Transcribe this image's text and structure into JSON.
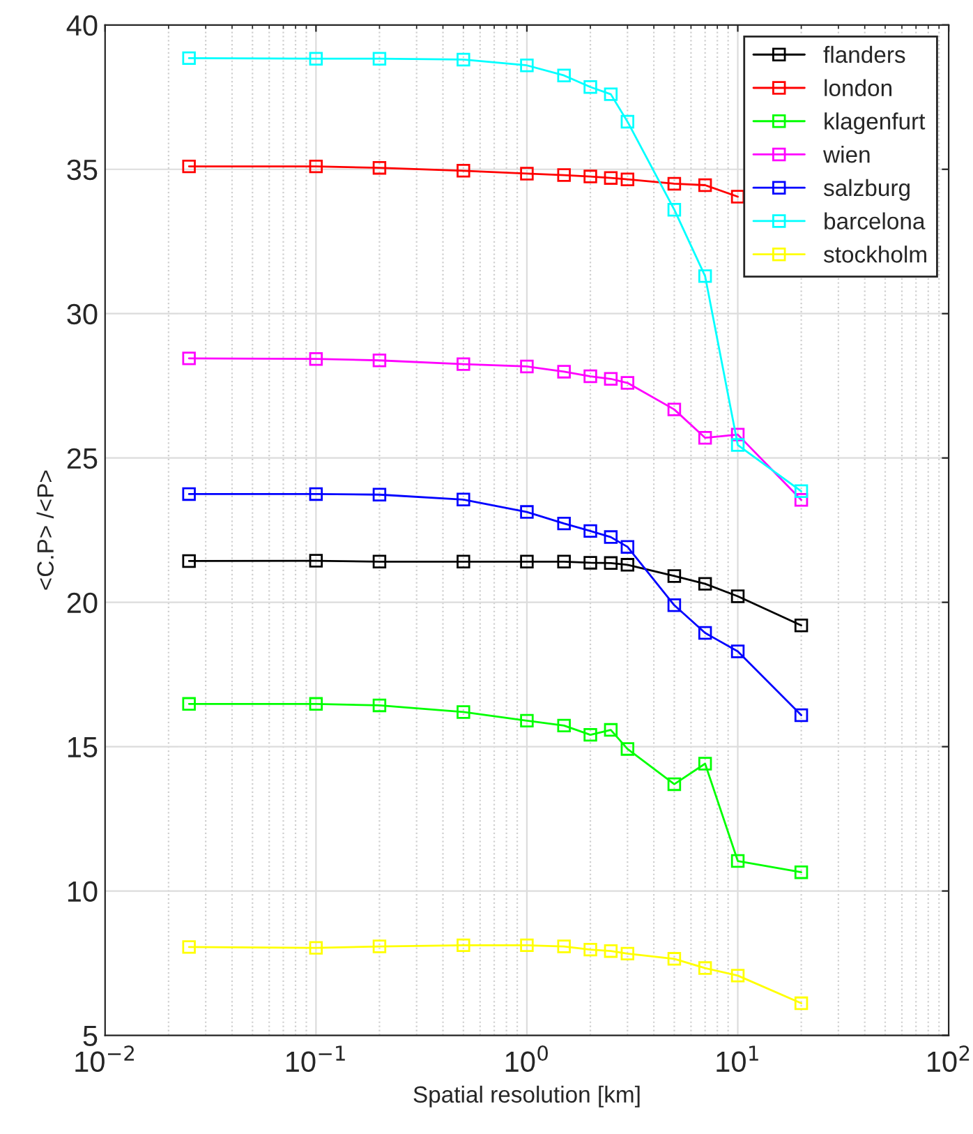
{
  "chart_data": {
    "type": "line",
    "xlabel": "Spatial resolution [km]",
    "ylabel": "<C.P> /<P>",
    "x": [
      0.025,
      0.1,
      0.2,
      0.5,
      1,
      1.5,
      2,
      2.5,
      3,
      5,
      7,
      10,
      20
    ],
    "log": "x",
    "xlim": [
      0.01,
      100
    ],
    "xticks": [
      {
        "value": 0.01,
        "label": "10$^{−2}$"
      },
      {
        "value": 0.1,
        "label": "10$^{−1}$"
      },
      {
        "value": 1,
        "label": "10$^{0}$"
      },
      {
        "value": 10,
        "label": "10$^{1}$"
      },
      {
        "value": 100,
        "label": "10$^{2}$"
      }
    ],
    "ylim": [
      5,
      40
    ],
    "yticks": [
      5,
      10,
      15,
      20,
      25,
      30,
      35,
      40
    ],
    "grid": true,
    "legend": "top right",
    "marker": "square",
    "line_style": "solid",
    "series": [
      {
        "name": "flanders",
        "color": "#000000",
        "values": [
          21.43,
          21.44,
          21.41,
          21.41,
          21.41,
          21.41,
          21.37,
          21.36,
          21.3,
          20.91,
          20.64,
          20.21,
          19.2
        ]
      },
      {
        "name": "london",
        "color": "#ff0000",
        "values": [
          35.1,
          35.1,
          35.05,
          34.95,
          34.85,
          34.8,
          34.75,
          34.7,
          34.65,
          34.5,
          34.45,
          34.05,
          null
        ]
      },
      {
        "name": "klagenfurt",
        "color": "#00ff00",
        "values": [
          16.48,
          16.48,
          16.43,
          16.2,
          15.9,
          15.73,
          15.41,
          15.58,
          14.92,
          13.7,
          14.41,
          11.04,
          10.65
        ]
      },
      {
        "name": "wien",
        "color": "#ff00ff",
        "values": [
          28.45,
          28.43,
          28.38,
          28.25,
          28.17,
          27.99,
          27.83,
          27.74,
          27.6,
          26.68,
          25.7,
          25.81,
          23.55
        ]
      },
      {
        "name": "salzburg",
        "color": "#0000ff",
        "values": [
          23.75,
          23.75,
          23.73,
          23.56,
          23.13,
          22.73,
          22.47,
          22.26,
          21.92,
          19.9,
          18.94,
          18.3,
          16.09
        ]
      },
      {
        "name": "barcelona",
        "color": "#00ffff",
        "values": [
          38.85,
          38.83,
          38.83,
          38.8,
          38.6,
          38.25,
          37.85,
          37.6,
          36.65,
          33.6,
          31.3,
          25.45,
          23.85
        ]
      },
      {
        "name": "stockholm",
        "color": "#ffff00",
        "values": [
          8.06,
          8.03,
          8.08,
          8.12,
          8.12,
          8.08,
          7.97,
          7.92,
          7.83,
          7.65,
          7.33,
          7.07,
          6.11
        ]
      }
    ]
  }
}
